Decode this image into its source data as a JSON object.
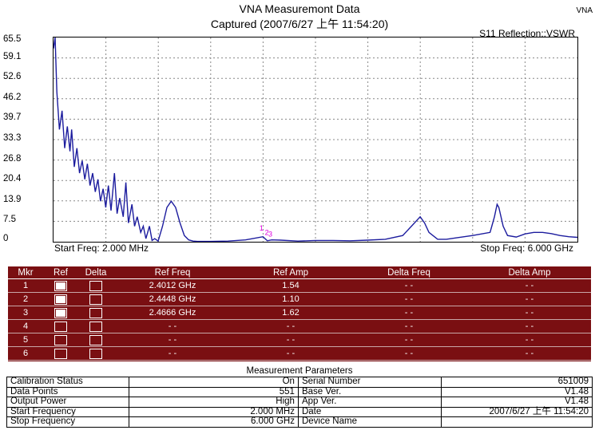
{
  "header": {
    "title": "VNA Measuremont Data",
    "subtitle": "Captured  (2007/6/27 上午 11:54:20)",
    "brand": "VNA",
    "mode": "S11 Reflection::VSWR",
    "start_freq": "Start Freq: 2.000 MHz",
    "stop_freq": "Stop Freq: 6.000 GHz"
  },
  "chart_data": {
    "type": "line",
    "ylabel": "",
    "yticks": [
      "65.5",
      "59.1",
      "52.6",
      "46.2",
      "39.7",
      "33.3",
      "26.8",
      "20.4",
      "13.9",
      "7.5",
      "0"
    ],
    "ylim": [
      0,
      65.5
    ],
    "xlim": [
      0.002,
      6.0
    ],
    "x_unit": "GHz",
    "grid": true,
    "series": [
      {
        "color": "#1c1c9e",
        "x": [
          0.002,
          0.02,
          0.04,
          0.07,
          0.1,
          0.13,
          0.16,
          0.19,
          0.21,
          0.24,
          0.27,
          0.3,
          0.33,
          0.36,
          0.39,
          0.42,
          0.45,
          0.48,
          0.51,
          0.54,
          0.57,
          0.6,
          0.63,
          0.66,
          0.7,
          0.73,
          0.76,
          0.8,
          0.83,
          0.86,
          0.9,
          0.93,
          0.96,
          1.0,
          1.03,
          1.06,
          1.1,
          1.13,
          1.16,
          1.2,
          1.25,
          1.3,
          1.35,
          1.4,
          1.45,
          1.5,
          1.55,
          1.6,
          1.65,
          1.7,
          1.75,
          1.8,
          2.0,
          2.2,
          2.4,
          2.45,
          2.5,
          2.6,
          2.8,
          3.0,
          3.2,
          3.4,
          3.6,
          3.8,
          4.0,
          4.1,
          4.2,
          4.25,
          4.3,
          4.4,
          4.5,
          4.6,
          4.8,
          5.0,
          5.02,
          5.05,
          5.08,
          5.1,
          5.15,
          5.2,
          5.3,
          5.4,
          5.5,
          5.6,
          5.7,
          5.8,
          5.9,
          6.0
        ],
        "values": [
          62,
          65.5,
          48,
          36,
          42,
          30,
          37,
          29,
          36,
          24,
          30,
          22,
          26,
          20,
          25,
          18,
          22,
          16,
          20,
          13,
          17,
          11,
          18,
          10,
          22,
          9,
          14,
          8,
          19,
          6,
          12,
          5,
          8,
          3,
          5,
          1,
          5,
          0.4,
          1,
          0.2,
          5,
          11,
          13,
          11,
          6,
          2,
          0.6,
          0.2,
          0.1,
          0.1,
          0.1,
          0.1,
          0.2,
          0.6,
          1.6,
          0.3,
          0.6,
          0.5,
          0.2,
          0.4,
          0.4,
          0.3,
          0.5,
          0.8,
          2,
          5,
          8,
          6,
          3,
          0.8,
          0.8,
          1.2,
          2,
          3,
          5,
          8,
          12,
          11,
          5,
          2,
          1.5,
          2.5,
          3,
          3,
          2.6,
          2,
          1.6,
          1.4
        ]
      }
    ],
    "markers": [
      {
        "label": "1",
        "x": 2.4012,
        "y": 1.54
      },
      {
        "label": "2",
        "x": 2.4448,
        "y": 1.1
      },
      {
        "label": "3",
        "x": 2.4666,
        "y": 1.62
      }
    ],
    "marker_color": "#e000e0"
  },
  "marker_table": {
    "headers": [
      "Mkr",
      "Ref",
      "Delta",
      "Ref Freq",
      "Ref Amp",
      "Delta Freq",
      "Delta Amp"
    ],
    "rows": [
      {
        "mkr": "1",
        "ref": true,
        "delta": false,
        "ref_freq": "2.4012 GHz",
        "ref_amp": "1.54",
        "delta_freq": "- -",
        "delta_amp": "- -"
      },
      {
        "mkr": "2",
        "ref": true,
        "delta": false,
        "ref_freq": "2.4448 GHz",
        "ref_amp": "1.10",
        "delta_freq": "- -",
        "delta_amp": "- -"
      },
      {
        "mkr": "3",
        "ref": true,
        "delta": false,
        "ref_freq": "2.4666 GHz",
        "ref_amp": "1.62",
        "delta_freq": "- -",
        "delta_amp": "- -"
      },
      {
        "mkr": "4",
        "ref": false,
        "delta": false,
        "ref_freq": "- -",
        "ref_amp": "- -",
        "delta_freq": "- -",
        "delta_amp": "- -"
      },
      {
        "mkr": "5",
        "ref": false,
        "delta": false,
        "ref_freq": "- -",
        "ref_amp": "- -",
        "delta_freq": "- -",
        "delta_amp": "- -"
      },
      {
        "mkr": "6",
        "ref": false,
        "delta": false,
        "ref_freq": "- -",
        "ref_amp": "- -",
        "delta_freq": "- -",
        "delta_amp": "- -"
      }
    ],
    "bg_color": "#7a0f12"
  },
  "params": {
    "title": "Measurement Parameters",
    "rows": [
      [
        "Calibration Status",
        "On",
        "Serial Number",
        "651009"
      ],
      [
        "Data Points",
        "551",
        "Base Ver.",
        "V1.48"
      ],
      [
        "Output Power",
        "High",
        "App Ver.",
        "V1.48"
      ],
      [
        "Start Frequency",
        "2.000 MHz",
        "Date",
        "2007/6/27 上午 11:54:20"
      ],
      [
        "Stop Frequency",
        "6.000 GHz",
        "Device Name",
        ""
      ]
    ]
  }
}
